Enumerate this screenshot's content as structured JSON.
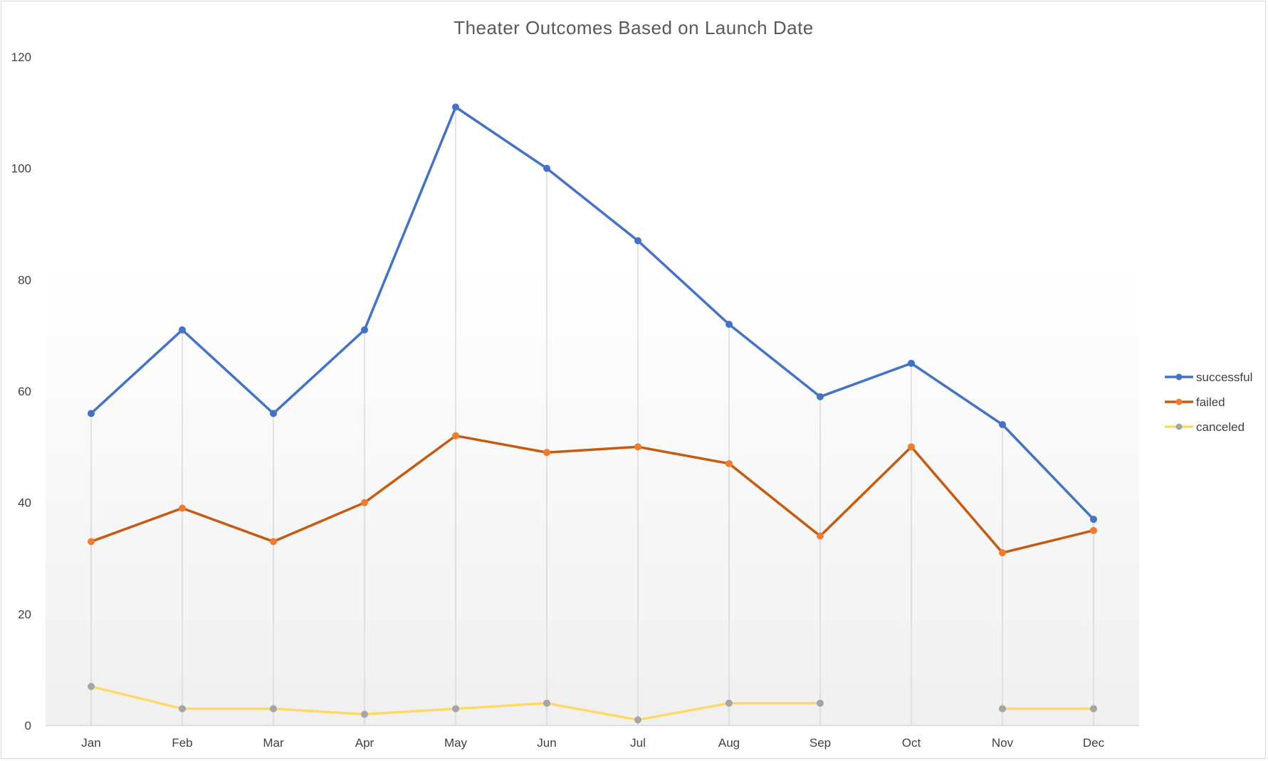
{
  "chart_data": {
    "type": "line",
    "title": "Theater Outcomes Based on Launch Date",
    "xlabel": "",
    "ylabel": "",
    "categories": [
      "Jan",
      "Feb",
      "Mar",
      "Apr",
      "May",
      "Jun",
      "Jul",
      "Aug",
      "Sep",
      "Oct",
      "Nov",
      "Dec"
    ],
    "ylim": [
      0,
      120
    ],
    "yticks": [
      0,
      20,
      40,
      60,
      80,
      100,
      120
    ],
    "grid": "vertical drop lines",
    "legend_position": "right",
    "series": [
      {
        "name": "successful",
        "color": "#4472C4",
        "marker_color": "#4472C4",
        "values": [
          56,
          71,
          56,
          71,
          111,
          100,
          87,
          72,
          59,
          65,
          54,
          37
        ]
      },
      {
        "name": "failed",
        "color": "#C55A11",
        "marker_color": "#ED7D31",
        "values": [
          33,
          39,
          33,
          40,
          52,
          49,
          50,
          47,
          34,
          50,
          31,
          35
        ]
      },
      {
        "name": "canceled",
        "color": "#FFD966",
        "marker_color": "#A5A5A5",
        "values": [
          7,
          3,
          3,
          2,
          3,
          4,
          1,
          4,
          4,
          null,
          3,
          3
        ]
      }
    ]
  }
}
